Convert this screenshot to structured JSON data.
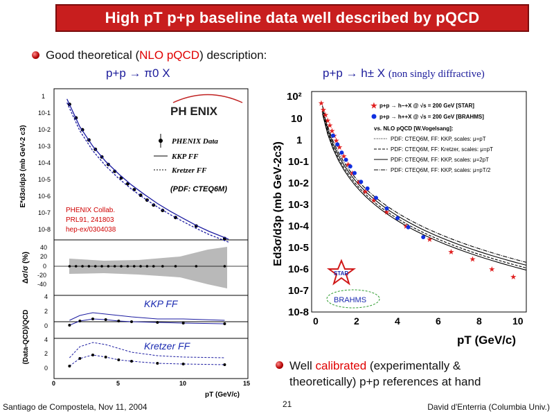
{
  "slide": {
    "title": "High pT p+p baseline data well described by pQCD",
    "bullet1_prefix": "Good theoretical (",
    "bullet1_red": "NLO pQCD",
    "bullet1_suffix": ") description:",
    "left_heading": "p+p → π0 X",
    "right_heading": "p+p → h± X",
    "right_heading_note": "(non singly diffractive)",
    "bullet2_line1_prefix": "Well ",
    "bullet2_line1_red": "calibrated",
    "bullet2_line1_suffix": " (experimentally &",
    "bullet2_line2": "theoretically) p+p references at hand",
    "footer_left": "Santiago de Compostela, Nov 11, 2004",
    "footer_center": "21",
    "footer_right": "David d'Enterria (Columbia Univ.)"
  },
  "left_figure": {
    "logo": "PH ENIX",
    "legend_data": "PHENIX Data",
    "legend_kkp": "KKP FF",
    "legend_kretzer": "Kretzer FF",
    "pdf_note": "(PDF: CTEQ6M)",
    "ref_line1": "PHENIX Collab.",
    "ref_line2": "PRL91, 241803",
    "ref_line3": "hep-ex/0304038",
    "ylabel_top": "E*d3σ/dp3 (mb GeV-2 c3)",
    "ylabel_mid": "Δσ/σ (%)",
    "ylabel_bot": "(Data-QCD)/QCD",
    "label_kkp": "KKP  FF",
    "label_kretzer": "Kretzer FF",
    "xlabel": "pT (GeV/c)",
    "yticks_top": [
      "1",
      "10-1",
      "10-2",
      "10-3",
      "10-4",
      "10-5",
      "10-6",
      "10-7",
      "10-8"
    ],
    "yticks_mid": [
      "40",
      "20",
      "0",
      "-20",
      "-40"
    ],
    "yticks_bot1": [
      "4",
      "2",
      "0"
    ],
    "yticks_bot2": [
      "4",
      "2",
      "0"
    ],
    "xticks": [
      "0",
      "5",
      "10",
      "15"
    ]
  },
  "right_figure": {
    "legend_star": "p+p → h−+X @ √s = 200 GeV [STAR]",
    "legend_brahms": "p+p → h++X @ √s = 200 GeV [BRAHMS]",
    "legend_vs": "vs. NLO pQCD [W.Vogelsang]:",
    "legend_pdf1": "PDF: CTEQ6M, FF: KKP, scales: μ=pT",
    "legend_pdf2": "PDF: CTEQ6M, FF: Kretzer, scales: μ=pT",
    "legend_pdf3": "PDF: CTEQ6M, FF: KKP, scales: μ=2pT",
    "legend_pdf4": "PDF: CTEQ6M, FF: KKP, scales: μ=pT/2",
    "ylabel": "Ed3σ/d3p (mb GeV-2c3)",
    "xlabel": "pT (GeV/c)",
    "yticks": [
      "10²",
      "10",
      "1",
      "10-1",
      "10-2",
      "10-3",
      "10-4",
      "10-5",
      "10-6",
      "10-7",
      "10-8"
    ],
    "xticks": [
      "0",
      "2",
      "4",
      "6",
      "8",
      "10"
    ],
    "star_logo": "STAR",
    "brahms_logo": "BRAHMS"
  },
  "chart_data": [
    {
      "type": "scatter",
      "title": "p+p → π0 X",
      "xlabel": "pT (GeV/c)",
      "ylabel": "E*d3σ/dp3 (mb GeV-2 c3)",
      "ylog": true,
      "xlim": [
        0,
        15
      ],
      "ylim": [
        1e-08,
        3
      ],
      "series": [
        {
          "name": "PHENIX Data",
          "x": [
            1.2,
            1.7,
            2.2,
            2.7,
            3.2,
            3.7,
            4.2,
            4.7,
            5.2,
            5.7,
            6.2,
            6.7,
            7.2,
            7.7,
            8.4,
            9.4,
            11,
            13.2
          ],
          "y": [
            0.4,
            0.07,
            0.015,
            0.004,
            0.0012,
            0.00045,
            0.00017,
            7e-05,
            3e-05,
            1.4e-05,
            6.5e-06,
            3.2e-06,
            1.7e-06,
            9e-07,
            4.5e-07,
            1.8e-07,
            6e-08,
            1.2e-08
          ]
        },
        {
          "name": "KKP FF",
          "x": [
            1,
            2,
            3,
            4,
            5,
            6,
            7,
            8,
            9,
            10,
            11,
            12,
            13.5
          ],
          "y": [
            0.8,
            0.022,
            0.0018,
            0.00025,
            5e-05,
            1.2e-05,
            3.5e-06,
            1.1e-06,
            4e-07,
            1.6e-07,
            6.5e-08,
            3e-08,
            1.1e-08
          ]
        },
        {
          "name": "Kretzer FF",
          "x": [
            1,
            2,
            3,
            4,
            5,
            6,
            7,
            8,
            9,
            10,
            11,
            12,
            13.5
          ],
          "y": [
            0.5,
            0.013,
            0.001,
            0.00014,
            2.8e-05,
            7e-06,
            2.1e-06,
            7e-07,
            2.6e-07,
            1.05e-07,
            4.4e-08,
            2e-08,
            7.5e-09
          ]
        }
      ]
    },
    {
      "type": "scatter",
      "title": "p+p → h± X",
      "xlabel": "pT (GeV/c)",
      "ylabel": "Ed3σ/d3p (mb GeV-2c3)",
      "ylog": true,
      "xlim": [
        0,
        10
      ],
      "ylim": [
        1e-08,
        100
      ],
      "series": [
        {
          "name": "STAR",
          "x": [
            0.45,
            0.55,
            0.65,
            0.75,
            0.85,
            0.95,
            1.05,
            1.15,
            1.3,
            1.5,
            1.7,
            1.9,
            2.2,
            2.5,
            2.9,
            3.5,
            4.4,
            5.5,
            6.5,
            7.5,
            8.4,
            9.4
          ],
          "y": [
            30,
            15,
            9,
            5,
            3,
            1.7,
            1.0,
            0.6,
            0.3,
            0.12,
            0.05,
            0.02,
            0.008,
            0.003,
            0.0012,
            0.00035,
            8e-05,
            2e-05,
            5.5e-06,
            2.5e-06,
            9e-07,
            4e-07
          ]
        },
        {
          "name": "BRAHMS",
          "x": [
            1.0,
            1.2,
            1.4,
            1.6,
            1.8,
            2.0,
            2.3,
            2.6,
            3.0,
            3.5,
            4.0,
            4.5,
            5.2
          ],
          "y": [
            1.0,
            0.4,
            0.17,
            0.08,
            0.04,
            0.02,
            0.008,
            0.004,
            0.0015,
            0.0005,
            0.00018,
            7e-05,
            2.5e-05
          ]
        }
      ]
    }
  ]
}
